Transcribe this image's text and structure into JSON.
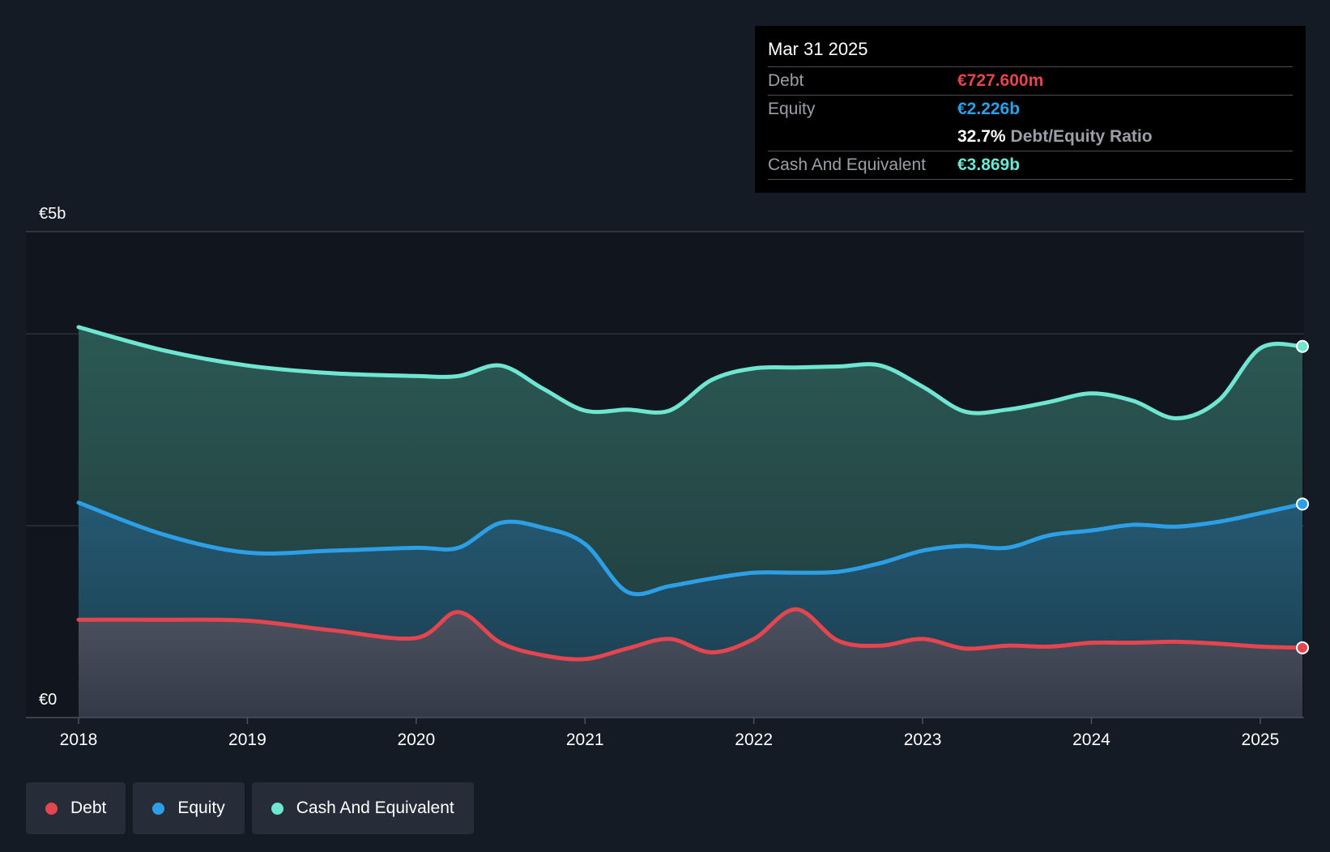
{
  "tooltip": {
    "date": "Mar 31 2025",
    "debt_label": "Debt",
    "debt_value": "€727.600m",
    "equity_label": "Equity",
    "equity_value": "€2.226b",
    "ratio_value": "32.7%",
    "ratio_label": "Debt/Equity Ratio",
    "cash_label": "Cash And Equivalent",
    "cash_value": "€3.869b"
  },
  "legend": {
    "debt": "Debt",
    "equity": "Equity",
    "cash": "Cash And Equivalent"
  },
  "colors": {
    "debt": "#e5454f",
    "equity": "#2d9fe6",
    "cash": "#6ee6d2",
    "background": "#151b24"
  },
  "chart_data": {
    "type": "area",
    "ylabel_top": "€5b",
    "ylabel_bottom": "€0",
    "ylim": [
      0,
      4.5
    ],
    "x_ticks": [
      "2018",
      "2019",
      "2020",
      "2021",
      "2022",
      "2023",
      "2024",
      "2025"
    ],
    "x_range": [
      2018.0,
      2025.25
    ],
    "grid": true,
    "legend_position": "bottom-left",
    "series": [
      {
        "name": "Cash And Equivalent",
        "key": "cash",
        "x": [
          2018.0,
          2018.5,
          2019.0,
          2019.5,
          2020.0,
          2020.25,
          2020.5,
          2020.75,
          2021.0,
          2021.25,
          2021.5,
          2021.75,
          2022.0,
          2022.25,
          2022.5,
          2022.75,
          2023.0,
          2023.25,
          2023.5,
          2023.75,
          2024.0,
          2024.25,
          2024.5,
          2024.75,
          2025.0,
          2025.25
        ],
        "y": [
          4.07,
          3.83,
          3.67,
          3.59,
          3.56,
          3.56,
          3.67,
          3.43,
          3.2,
          3.21,
          3.2,
          3.52,
          3.64,
          3.65,
          3.66,
          3.67,
          3.45,
          3.19,
          3.21,
          3.29,
          3.38,
          3.3,
          3.12,
          3.3,
          3.85,
          3.869
        ]
      },
      {
        "name": "Equity",
        "key": "equity",
        "x": [
          2018.0,
          2018.5,
          2019.0,
          2019.5,
          2020.0,
          2020.25,
          2020.5,
          2020.75,
          2021.0,
          2021.25,
          2021.5,
          2021.75,
          2022.0,
          2022.25,
          2022.5,
          2022.75,
          2023.0,
          2023.25,
          2023.5,
          2023.75,
          2024.0,
          2024.25,
          2024.5,
          2024.75,
          2025.0,
          2025.25
        ],
        "y": [
          2.24,
          1.91,
          1.72,
          1.74,
          1.77,
          1.77,
          2.03,
          1.98,
          1.81,
          1.31,
          1.37,
          1.45,
          1.51,
          1.51,
          1.52,
          1.61,
          1.74,
          1.79,
          1.77,
          1.9,
          1.95,
          2.01,
          1.99,
          2.04,
          2.13,
          2.226
        ]
      },
      {
        "name": "Debt",
        "key": "debt",
        "x": [
          2018.0,
          2018.5,
          2019.0,
          2019.5,
          2020.0,
          2020.25,
          2020.5,
          2020.75,
          2021.0,
          2021.25,
          2021.5,
          2021.75,
          2022.0,
          2022.25,
          2022.5,
          2022.75,
          2023.0,
          2023.25,
          2023.5,
          2023.75,
          2024.0,
          2024.25,
          2024.5,
          2024.75,
          2025.0,
          2025.25
        ],
        "y": [
          1.02,
          1.02,
          1.01,
          0.91,
          0.83,
          1.1,
          0.78,
          0.65,
          0.61,
          0.72,
          0.82,
          0.68,
          0.82,
          1.13,
          0.8,
          0.75,
          0.82,
          0.72,
          0.75,
          0.74,
          0.78,
          0.78,
          0.79,
          0.77,
          0.74,
          0.7276
        ]
      }
    ]
  }
}
